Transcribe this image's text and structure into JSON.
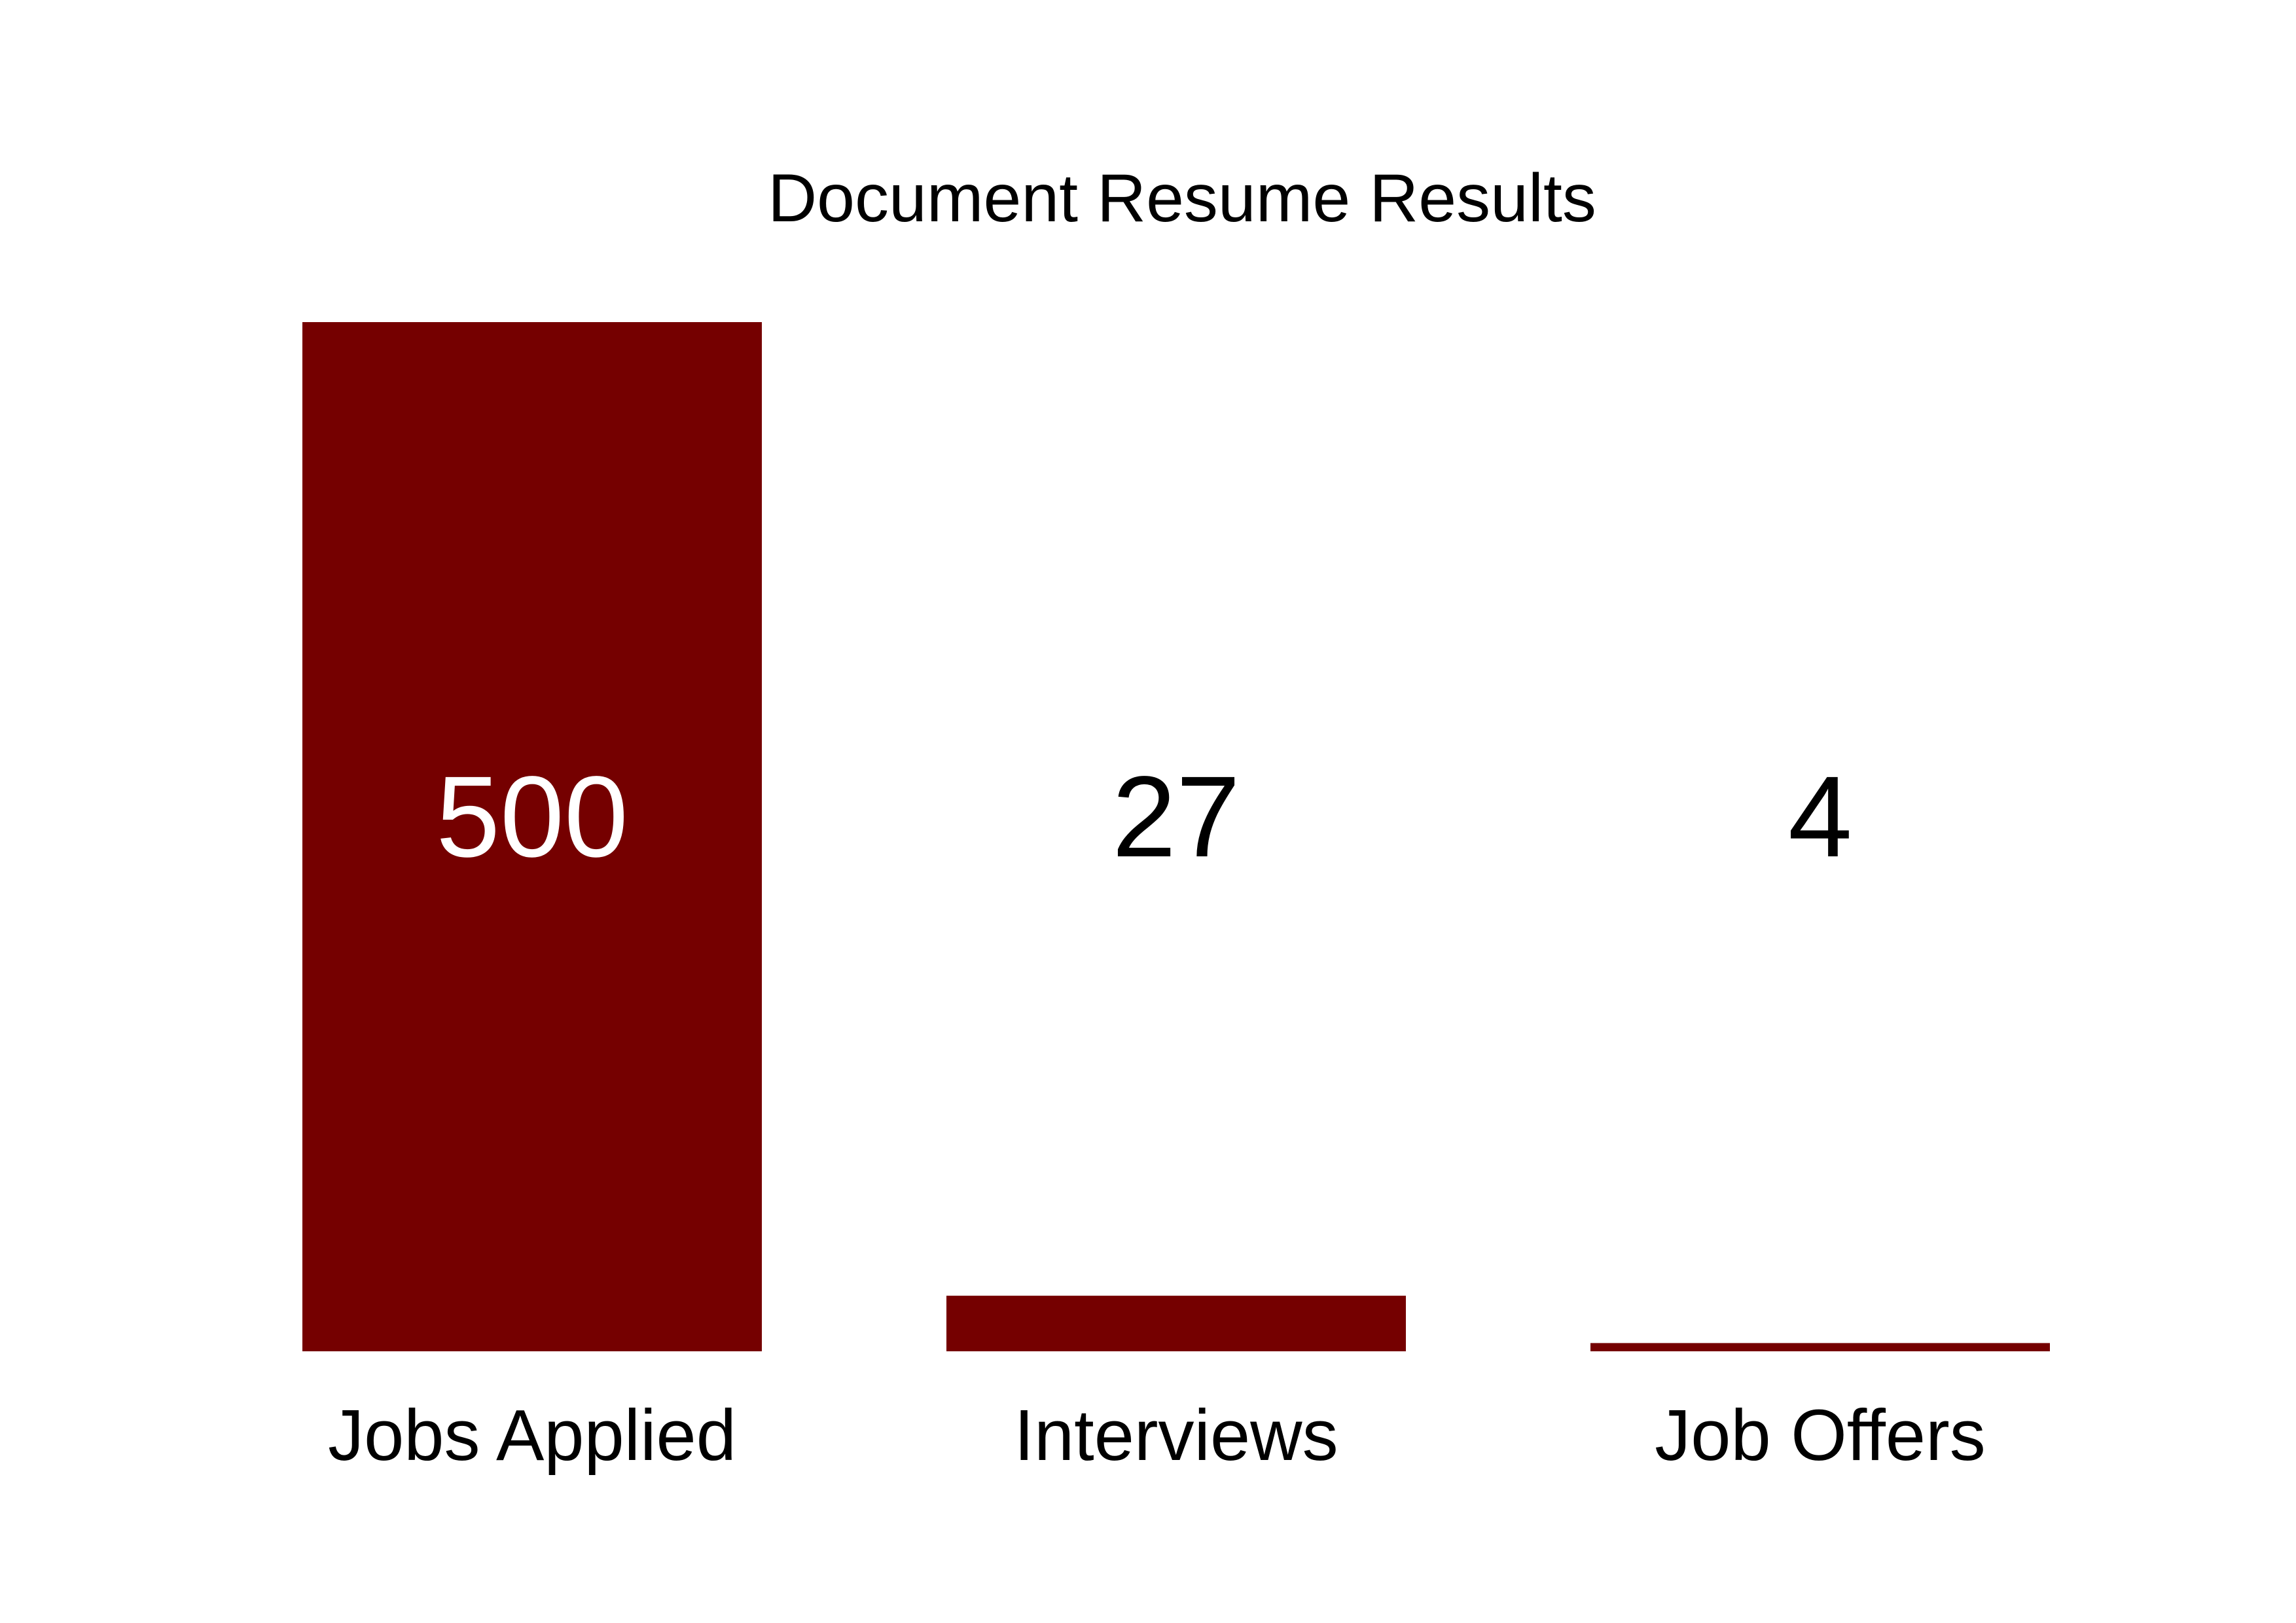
{
  "chart_data": {
    "type": "bar",
    "title": "Document Resume Results",
    "categories": [
      "Jobs Applied",
      "Interviews",
      "Job Offers"
    ],
    "values": [
      500,
      27,
      4
    ],
    "data_labels": [
      "500",
      "27",
      "4"
    ],
    "ylim": [
      0,
      500
    ],
    "grid": false,
    "legend": "none",
    "xlabel": "",
    "ylabel": ""
  },
  "colors": {
    "bar": "#750000",
    "label_inside": "#ffffff",
    "label_outside": "#000000",
    "text": "#000000",
    "background": "#ffffff"
  }
}
